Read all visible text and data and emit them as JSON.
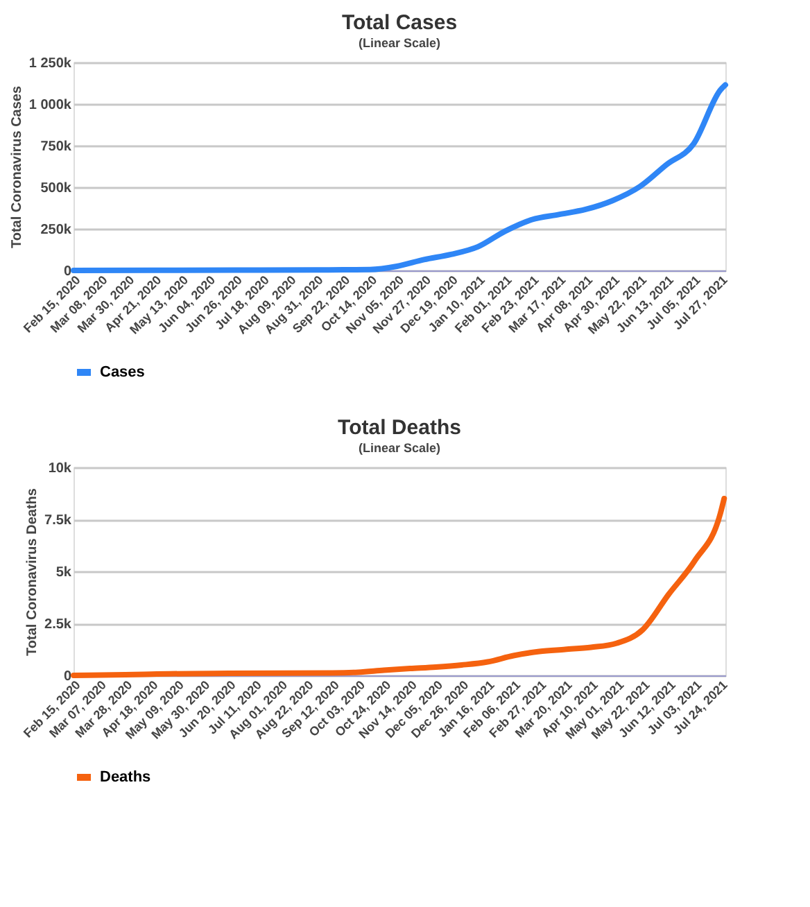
{
  "chart_data": [
    {
      "type": "line",
      "title": "Total Cases",
      "subtitle": "(Linear Scale)",
      "ylabel": "Total Coronavirus Cases",
      "grid": "y",
      "legend": "bottom",
      "marker": "none",
      "line_style": "solid",
      "xlim": [
        "2020-02-15",
        "2021-07-31"
      ],
      "xticks": [
        {
          "value": "2020-02-15",
          "label": "Feb 15, 2020"
        },
        {
          "value": "2020-03-08",
          "label": "Mar 08, 2020"
        },
        {
          "value": "2020-03-30",
          "label": "Mar 30, 2020"
        },
        {
          "value": "2020-04-21",
          "label": "Apr 21, 2020"
        },
        {
          "value": "2020-05-13",
          "label": "May 13, 2020"
        },
        {
          "value": "2020-06-04",
          "label": "Jun 04, 2020"
        },
        {
          "value": "2020-06-26",
          "label": "Jun 26, 2020"
        },
        {
          "value": "2020-07-18",
          "label": "Jul 18, 2020"
        },
        {
          "value": "2020-08-09",
          "label": "Aug 09, 2020"
        },
        {
          "value": "2020-08-31",
          "label": "Aug 31, 2020"
        },
        {
          "value": "2020-09-22",
          "label": "Sep 22, 2020"
        },
        {
          "value": "2020-10-14",
          "label": "Oct 14, 2020"
        },
        {
          "value": "2020-11-05",
          "label": "Nov 05, 2020"
        },
        {
          "value": "2020-11-27",
          "label": "Nov 27, 2020"
        },
        {
          "value": "2020-12-19",
          "label": "Dec 19, 2020"
        },
        {
          "value": "2021-01-10",
          "label": "Jan 10, 2021"
        },
        {
          "value": "2021-02-01",
          "label": "Feb 01, 2021"
        },
        {
          "value": "2021-02-23",
          "label": "Feb 23, 2021"
        },
        {
          "value": "2021-03-17",
          "label": "Mar 17, 2021"
        },
        {
          "value": "2021-04-08",
          "label": "Apr 08, 2021"
        },
        {
          "value": "2021-04-30",
          "label": "Apr 30, 2021"
        },
        {
          "value": "2021-05-22",
          "label": "May 22, 2021"
        },
        {
          "value": "2021-06-13",
          "label": "Jun 13, 2021"
        },
        {
          "value": "2021-07-05",
          "label": "Jul 05, 2021"
        },
        {
          "value": "2021-07-27",
          "label": "Jul 27, 2021"
        }
      ],
      "ylim": [
        0,
        1250000
      ],
      "yticks": [
        0,
        {
          "value": 250000,
          "label": "250k"
        },
        {
          "value": 500000,
          "label": "500k"
        },
        {
          "value": 750000,
          "label": "750k"
        },
        {
          "value": 1000000,
          "label": "1 000k"
        },
        {
          "value": 1250000,
          "label": "1 250k"
        }
      ],
      "x": [
        "2020-02-15",
        "2020-04-21",
        "2020-06-26",
        "2020-08-31",
        "2020-09-22",
        "2020-10-14",
        "2020-11-05",
        "2020-11-27",
        "2020-12-19",
        "2021-01-10",
        "2021-02-01",
        "2021-02-23",
        "2021-03-17",
        "2021-04-08",
        "2021-04-30",
        "2021-05-22",
        "2021-06-13",
        "2021-07-05",
        "2021-07-27",
        "2021-07-31"
      ],
      "series": [
        {
          "name": "Cases",
          "color": "#2f86f6",
          "values": [
            0,
            1000,
            2000,
            3000,
            4000,
            5000,
            25000,
            65000,
            96000,
            142000,
            235000,
            305000,
            336000,
            367000,
            420000,
            503000,
            636000,
            760000,
            1085000,
            1115000
          ]
        }
      ]
    },
    {
      "type": "line",
      "title": "Total Deaths",
      "subtitle": "(Linear Scale)",
      "ylabel": "Total Coronavirus Deaths",
      "grid": "y",
      "legend": "bottom",
      "marker": "none",
      "line_style": "solid",
      "xlim": [
        "2020-02-15",
        "2021-07-28"
      ],
      "xticks": [
        {
          "value": "2020-02-15",
          "label": "Feb 15, 2020"
        },
        {
          "value": "2020-03-07",
          "label": "Mar 07, 2020"
        },
        {
          "value": "2020-03-28",
          "label": "Mar 28, 2020"
        },
        {
          "value": "2020-04-18",
          "label": "Apr 18, 2020"
        },
        {
          "value": "2020-05-09",
          "label": "May 09, 2020"
        },
        {
          "value": "2020-05-30",
          "label": "May 30, 2020"
        },
        {
          "value": "2020-06-20",
          "label": "Jun 20, 2020"
        },
        {
          "value": "2020-07-11",
          "label": "Jul 11, 2020"
        },
        {
          "value": "2020-08-01",
          "label": "Aug 01, 2020"
        },
        {
          "value": "2020-08-22",
          "label": "Aug 22, 2020"
        },
        {
          "value": "2020-09-12",
          "label": "Sep 12, 2020"
        },
        {
          "value": "2020-10-03",
          "label": "Oct 03, 2020"
        },
        {
          "value": "2020-10-24",
          "label": "Oct 24, 2020"
        },
        {
          "value": "2020-11-14",
          "label": "Nov 14, 2020"
        },
        {
          "value": "2020-12-05",
          "label": "Dec 05, 2020"
        },
        {
          "value": "2020-12-26",
          "label": "Dec 26, 2020"
        },
        {
          "value": "2021-01-16",
          "label": "Jan 16, 2021"
        },
        {
          "value": "2021-02-06",
          "label": "Feb 06, 2021"
        },
        {
          "value": "2021-02-27",
          "label": "Feb 27, 2021"
        },
        {
          "value": "2021-03-20",
          "label": "Mar 20, 2021"
        },
        {
          "value": "2021-04-10",
          "label": "Apr 10, 2021"
        },
        {
          "value": "2021-05-01",
          "label": "May 01, 2021"
        },
        {
          "value": "2021-05-22",
          "label": "May 22, 2021"
        },
        {
          "value": "2021-06-12",
          "label": "Jun 12, 2021"
        },
        {
          "value": "2021-07-03",
          "label": "Jul 03, 2021"
        },
        {
          "value": "2021-07-24",
          "label": "Jul 24, 2021"
        }
      ],
      "ylim": [
        0,
        10000
      ],
      "yticks": [
        0,
        {
          "value": 2500,
          "label": "2.5k"
        },
        {
          "value": 5000,
          "label": "5k"
        },
        {
          "value": 7500,
          "label": "7.5k"
        },
        {
          "value": 10000,
          "label": "10k"
        }
      ],
      "x": [
        "2020-02-15",
        "2020-03-28",
        "2020-04-18",
        "2020-06-20",
        "2020-09-12",
        "2020-10-03",
        "2020-10-24",
        "2020-11-14",
        "2020-12-05",
        "2020-12-26",
        "2021-01-16",
        "2021-02-06",
        "2021-02-27",
        "2021-03-20",
        "2021-04-10",
        "2021-05-01",
        "2021-05-22",
        "2021-06-12",
        "2021-07-03",
        "2021-07-24",
        "2021-07-27"
      ],
      "series": [
        {
          "name": "Deaths",
          "color": "#f5620f",
          "values": [
            0,
            30,
            60,
            100,
            120,
            150,
            250,
            330,
            400,
            500,
            650,
            950,
            1150,
            1250,
            1350,
            1550,
            2200,
            3900,
            5500,
            7800,
            8500
          ]
        }
      ]
    }
  ]
}
